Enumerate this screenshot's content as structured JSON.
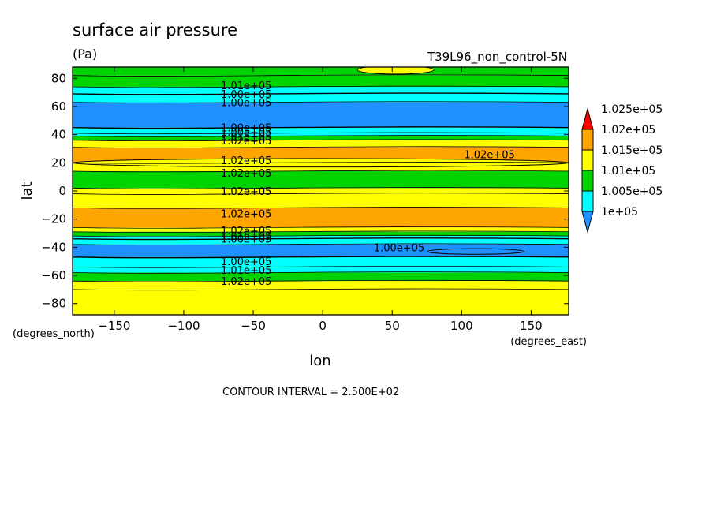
{
  "chart_data": {
    "type": "heatmap",
    "title": "surface air pressure",
    "units": "(Pa)",
    "dataset_label": "T39L96_non_control-5N",
    "xlabel": "lon",
    "ylabel": "lat",
    "x_unit_label": "(degrees_east)",
    "y_unit_label": "(degrees_north)",
    "xlim": [
      -180,
      177
    ],
    "ylim": [
      -88,
      88
    ],
    "x_ticks": [
      -150,
      -100,
      -50,
      0,
      50,
      100,
      150
    ],
    "y_ticks": [
      -80,
      -60,
      -40,
      -20,
      0,
      20,
      40,
      60,
      80
    ],
    "contour_interval_text": "CONTOUR INTERVAL = 2.500E+02",
    "contour_interval": 250,
    "colorbar": {
      "levels": [
        100000,
        100500,
        101000,
        101500,
        102000,
        102500
      ],
      "labels": [
        "1e+05",
        "1.005e+05",
        "1.01e+05",
        "1.015e+05",
        "1.02e+05",
        "1.025e+05"
      ],
      "colors": [
        "#1e90ff",
        "#00ffff",
        "#00d400",
        "#ffff00",
        "#ffa500",
        "#ff0000"
      ],
      "extend": "both"
    },
    "zonal_bands": [
      {
        "lat_min": 82,
        "lat_max": 88,
        "value": 101250
      },
      {
        "lat_min": 74,
        "lat_max": 82,
        "value": 101250
      },
      {
        "lat_min": 69,
        "lat_max": 74,
        "value": 100750
      },
      {
        "lat_min": 63,
        "lat_max": 69,
        "value": 100500
      },
      {
        "lat_min": 45,
        "lat_max": 63,
        "value": 100250
      },
      {
        "lat_min": 41,
        "lat_max": 45,
        "value": 100500
      },
      {
        "lat_min": 39,
        "lat_max": 41,
        "value": 100750
      },
      {
        "lat_min": 36,
        "lat_max": 39,
        "value": 101250
      },
      {
        "lat_min": 31,
        "lat_max": 36,
        "value": 101750
      },
      {
        "lat_min": 20,
        "lat_max": 31,
        "value": 102250
      },
      {
        "lat_min": 14,
        "lat_max": 20,
        "value": 101750
      },
      {
        "lat_min": 2,
        "lat_max": 14,
        "value": 101250
      },
      {
        "lat_min": -2,
        "lat_max": 2,
        "value": 101750
      },
      {
        "lat_min": -12,
        "lat_max": -2,
        "value": 101750
      },
      {
        "lat_min": -26,
        "lat_max": -12,
        "value": 102250
      },
      {
        "lat_min": -29,
        "lat_max": -26,
        "value": 101750
      },
      {
        "lat_min": -32,
        "lat_max": -29,
        "value": 101250
      },
      {
        "lat_min": -34,
        "lat_max": -32,
        "value": 100750
      },
      {
        "lat_min": -38,
        "lat_max": -34,
        "value": 100500
      },
      {
        "lat_min": -47,
        "lat_max": -38,
        "value": 100250
      },
      {
        "lat_min": -54,
        "lat_max": -47,
        "value": 100500
      },
      {
        "lat_min": -58,
        "lat_max": -54,
        "value": 100750
      },
      {
        "lat_min": -64,
        "lat_max": -58,
        "value": 101250
      },
      {
        "lat_min": -70,
        "lat_max": -64,
        "value": 101750
      },
      {
        "lat_min": -88,
        "lat_max": -70,
        "value": 101750
      }
    ],
    "features": [
      {
        "lon_min": 25,
        "lon_max": 80,
        "lat_min": 83,
        "lat_max": 89,
        "value": 101750
      },
      {
        "lon_min": -180,
        "lon_max": 177,
        "lat_min": 17,
        "lat_max": 23,
        "value": 101750
      },
      {
        "lon_min": 75,
        "lon_max": 145,
        "lat_min": -45,
        "lat_max": -41,
        "value": 100000
      }
    ],
    "contour_labels": [
      {
        "text": "1.01e+05",
        "lon": -55,
        "lat": 75
      },
      {
        "text": "1.00e+05",
        "lon": -55,
        "lat": 69
      },
      {
        "text": "1.00e+05",
        "lon": -55,
        "lat": 63
      },
      {
        "text": "1.00e+05",
        "lon": -55,
        "lat": 45
      },
      {
        "text": "1.00e+05",
        "lon": -55,
        "lat": 42
      },
      {
        "text": "1.01e+05",
        "lon": -55,
        "lat": 39
      },
      {
        "text": "1.02e+05",
        "lon": -55,
        "lat": 36
      },
      {
        "text": "1.02e+05",
        "lon": -55,
        "lat": 22
      },
      {
        "text": "1.02e+05",
        "lon": -55,
        "lat": 13
      },
      {
        "text": "1.02e+05",
        "lon": -55,
        "lat": 0
      },
      {
        "text": "1.02e+05",
        "lon": -55,
        "lat": -16
      },
      {
        "text": "1.02e+05",
        "lon": -55,
        "lat": -28
      },
      {
        "text": "1.01e+05",
        "lon": -55,
        "lat": -32
      },
      {
        "text": "1.00e+05",
        "lon": -55,
        "lat": -34
      },
      {
        "text": "1.00e+05",
        "lon": -55,
        "lat": -50
      },
      {
        "text": "1.01e+05",
        "lon": -55,
        "lat": -56
      },
      {
        "text": "1.02e+05",
        "lon": -55,
        "lat": -64
      },
      {
        "text": "1.02e+05",
        "lon": 120,
        "lat": 26
      },
      {
        "text": "1.00e+05",
        "lon": 55,
        "lat": -40
      }
    ]
  }
}
